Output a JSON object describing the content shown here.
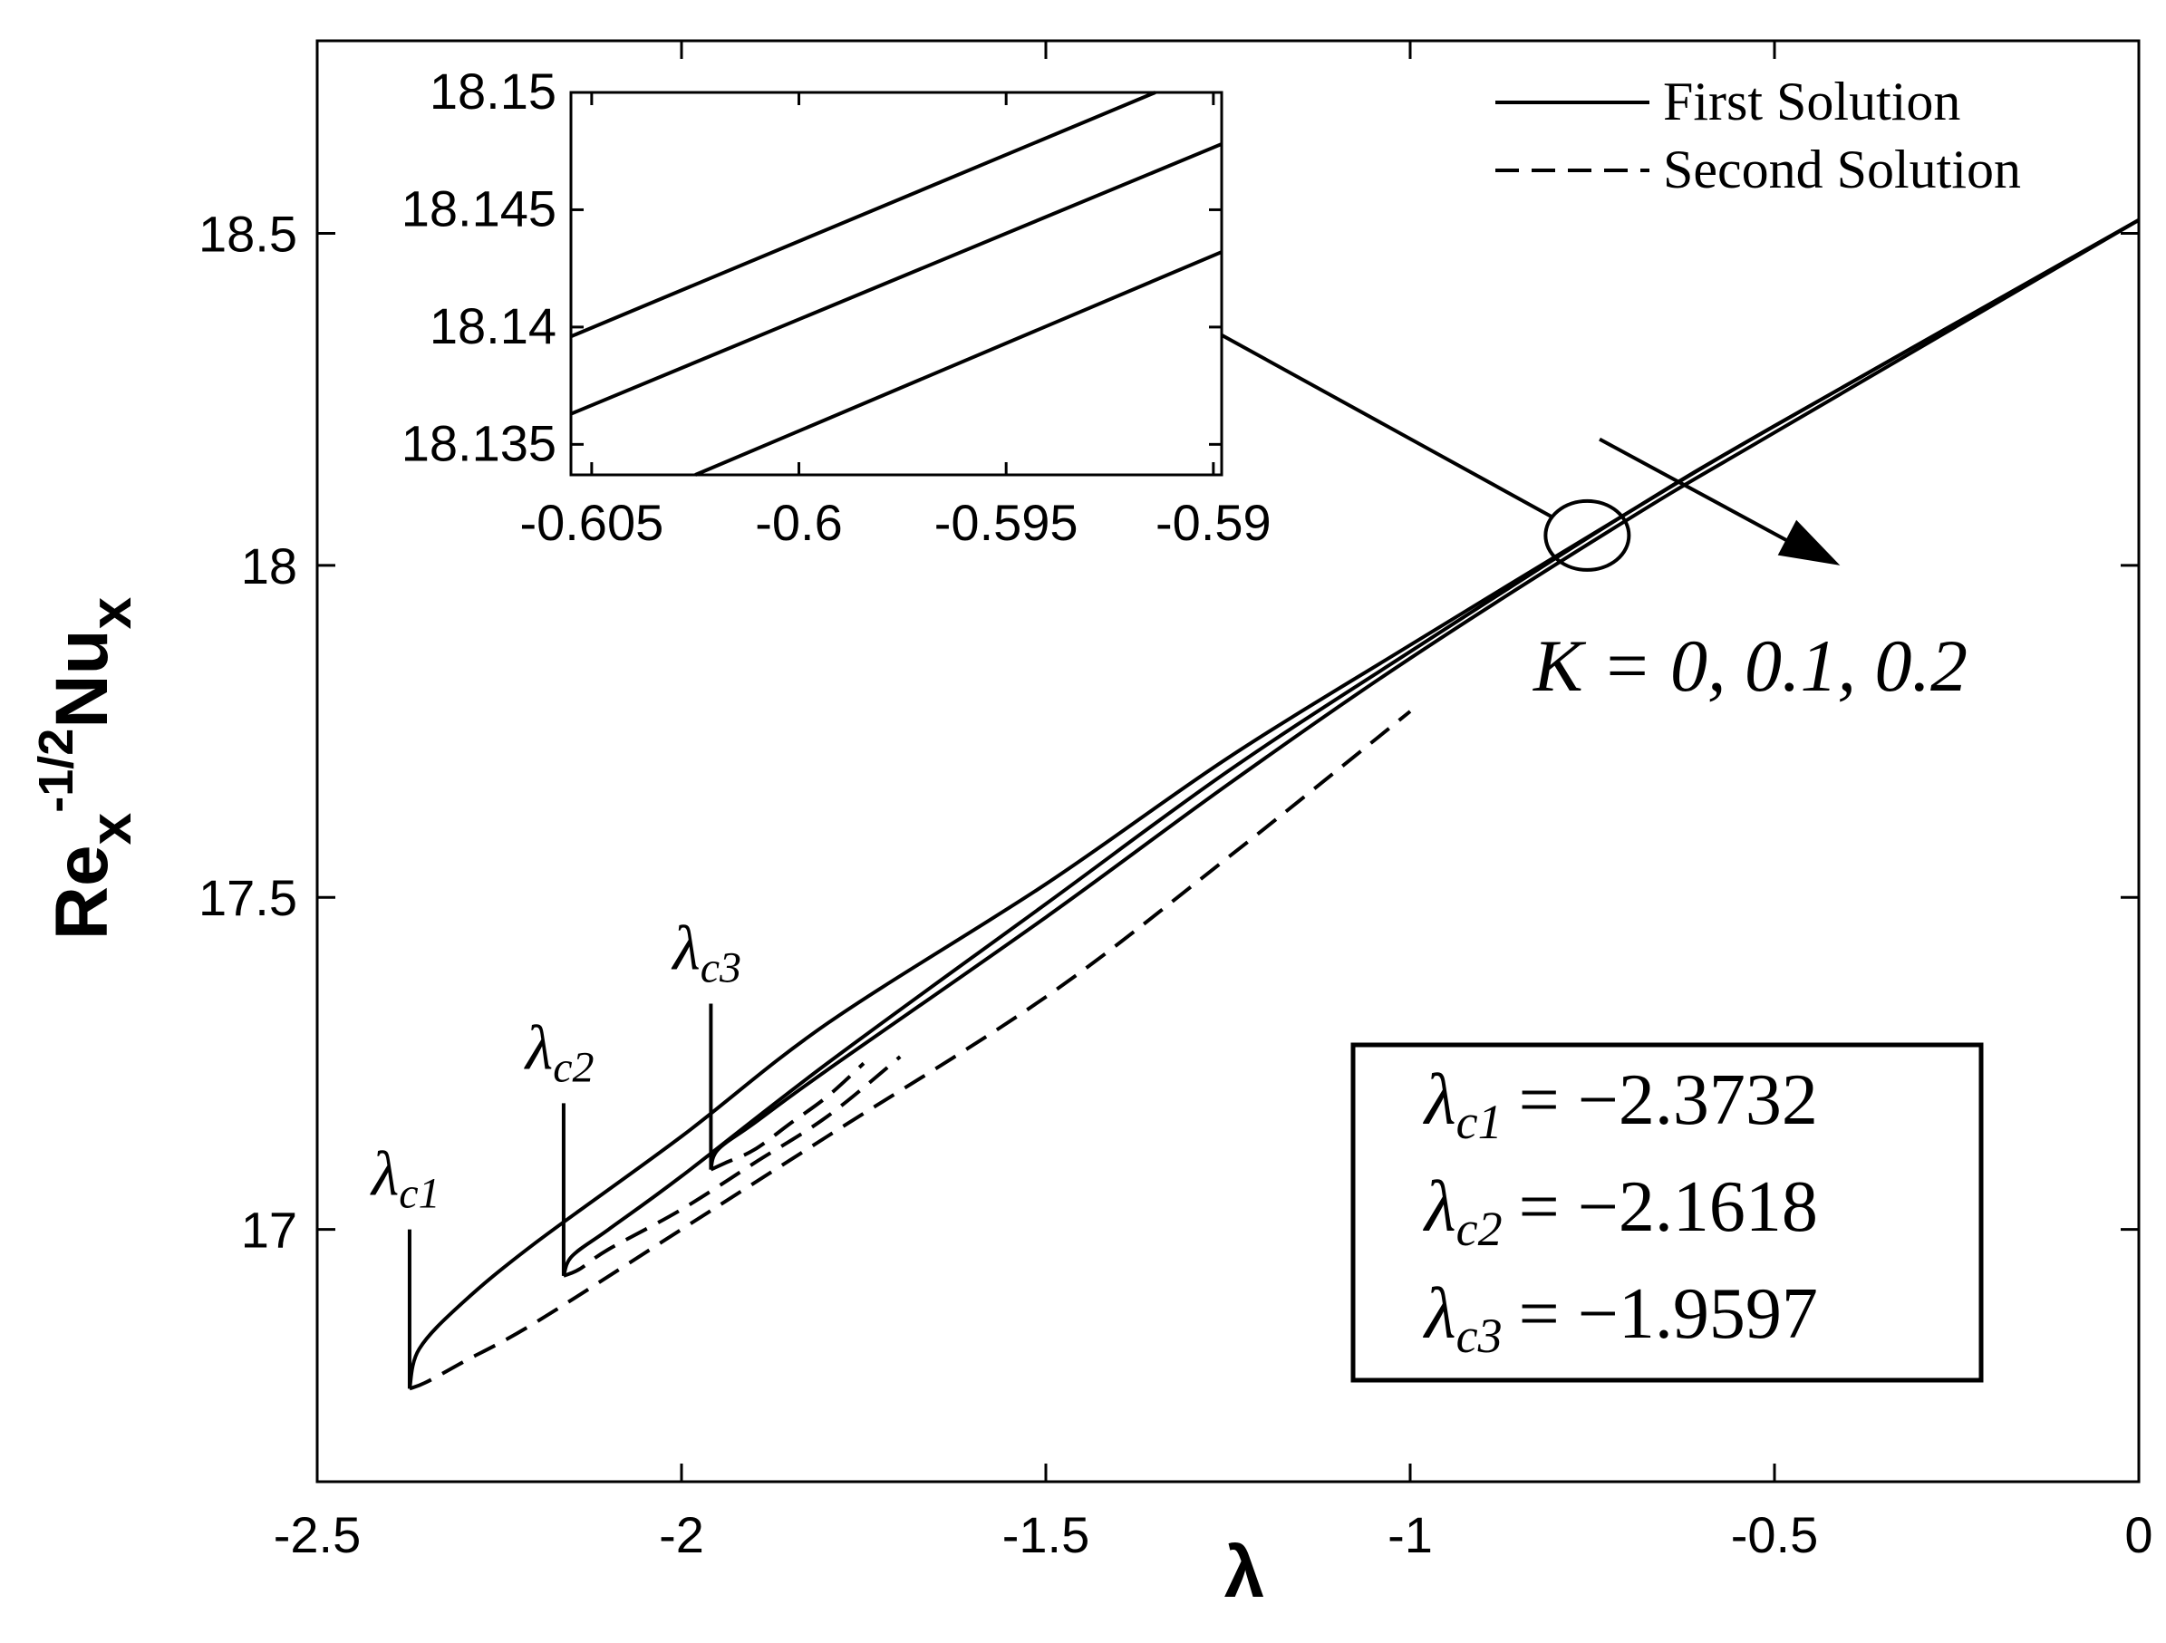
{
  "chart_data": {
    "type": "line",
    "xlabel": "λ",
    "ylabel": {
      "base": "Re",
      "sub1": "x",
      "sup": "-1/2",
      "base2": "Nu",
      "sub2": "x"
    },
    "xlim": [
      -2.5,
      0
    ],
    "ylim": [
      16.62,
      18.79
    ],
    "x_ticks": [
      "-2.5",
      "-2",
      "-1.5",
      "-1",
      "-0.5",
      "0"
    ],
    "x_tick_values": [
      -2.5,
      -2,
      -1.5,
      -1,
      -0.5,
      0
    ],
    "y_ticks": [
      "17",
      "17.5",
      "18",
      "18.5"
    ],
    "y_tick_values": [
      17,
      17.5,
      18,
      18.5
    ],
    "grid": false,
    "legend": {
      "position": "top-right",
      "entries": [
        {
          "label": "First Solution",
          "style": "solid"
        },
        {
          "label": "Second Solution",
          "style": "dashed"
        }
      ]
    },
    "series": [
      {
        "style": "solid",
        "x": [
          -2.3732,
          -2.36,
          -2.3,
          -2.2,
          -2.0,
          -1.8,
          -1.5,
          -1.25,
          -1.0,
          -0.7,
          -0.5,
          0.0
        ],
        "y": [
          16.76,
          16.82,
          16.89,
          16.98,
          17.14,
          17.31,
          17.52,
          17.71,
          17.88,
          18.08,
          18.21,
          18.52
        ]
      },
      {
        "style": "solid",
        "x": [
          -2.1618,
          -2.15,
          -2.1,
          -2.0,
          -1.8,
          -1.5,
          -1.25,
          -1.0,
          -0.7,
          -0.5,
          0.0
        ],
        "y": [
          16.93,
          16.96,
          17.0,
          17.08,
          17.25,
          17.49,
          17.69,
          17.87,
          18.08,
          18.21,
          18.52
        ]
      },
      {
        "style": "solid",
        "x": [
          -1.9597,
          -1.95,
          -1.9,
          -1.8,
          -1.5,
          -1.25,
          -1.0,
          -0.7,
          -0.5,
          0.0
        ],
        "y": [
          17.09,
          17.12,
          17.16,
          17.24,
          17.47,
          17.67,
          17.86,
          18.07,
          18.2,
          18.52
        ]
      },
      {
        "style": "dashed",
        "x": [
          -2.3732,
          -2.35,
          -2.3,
          -2.2,
          -2.0,
          -1.8,
          -1.5,
          -1.25,
          -1.0
        ],
        "y": [
          16.76,
          16.77,
          16.8,
          16.86,
          17.0,
          17.14,
          17.35,
          17.56,
          17.78
        ]
      },
      {
        "style": "dashed",
        "x": [
          -2.1618,
          -2.14,
          -2.1,
          -2.0,
          -1.9,
          -1.8,
          -1.7
        ],
        "y": [
          16.93,
          16.94,
          16.97,
          17.03,
          17.1,
          17.17,
          17.26
        ]
      },
      {
        "style": "dashed",
        "x": [
          -1.9597,
          -1.94,
          -1.9,
          -1.85,
          -1.8,
          -1.75
        ],
        "y": [
          17.09,
          17.1,
          17.12,
          17.16,
          17.2,
          17.25
        ]
      }
    ],
    "critical_points": [
      {
        "label": "λ",
        "sub": "c1",
        "x": -2.3732,
        "y": 16.76,
        "y_top": 17.0
      },
      {
        "label": "λ",
        "sub": "c2",
        "x": -2.1618,
        "y": 16.93,
        "y_top": 17.19
      },
      {
        "label": "λ",
        "sub": "c3",
        "x": -1.9597,
        "y": 17.09,
        "y_top": 17.34
      }
    ],
    "annotation_K": {
      "text": "K = 0, 0.1, 0.2",
      "x_from": -0.74,
      "y_from": 18.19,
      "x_to": -0.41,
      "y_to": 18.0
    },
    "zoom_ellipse": {
      "x": -0.757,
      "y": 18.045
    },
    "critical_box": {
      "lines": [
        {
          "symbol": "λ",
          "sub": "c1",
          "value": "= −2.3732"
        },
        {
          "symbol": "λ",
          "sub": "c2",
          "value": "= −2.1618"
        },
        {
          "symbol": "λ",
          "sub": "c3",
          "value": "= −1.9597"
        }
      ]
    },
    "inset": {
      "xlim": [
        -0.6055,
        -0.5898
      ],
      "ylim": [
        18.1337,
        18.15
      ],
      "x_ticks": [
        "-0.605",
        "-0.6",
        "-0.595",
        "-0.59"
      ],
      "x_tick_values": [
        -0.605,
        -0.6,
        -0.595,
        -0.59
      ],
      "y_ticks": [
        "18.135",
        "18.14",
        "18.145",
        "18.15"
      ],
      "y_tick_values": [
        18.135,
        18.14,
        18.145,
        18.15
      ],
      "series": [
        {
          "x": [
            -0.6055,
            -0.5914
          ],
          "y": [
            18.1396,
            18.15
          ]
        },
        {
          "x": [
            -0.6055,
            -0.5898
          ],
          "y": [
            18.1363,
            18.1478
          ]
        },
        {
          "x": [
            -0.6025,
            -0.5898
          ],
          "y": [
            18.1337,
            18.1432
          ]
        }
      ]
    }
  }
}
